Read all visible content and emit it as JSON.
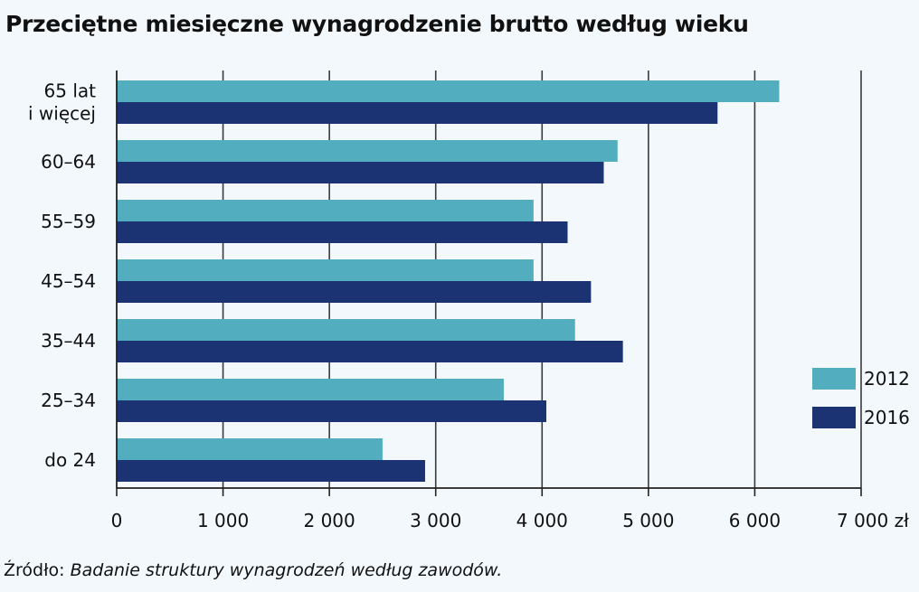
{
  "chart_data": {
    "type": "bar",
    "orientation": "horizontal",
    "title": "Przeciętne miesięczne wynagrodzenie brutto według wieku",
    "categories": [
      [
        "65 lat",
        "i więcej"
      ],
      [
        "60–64"
      ],
      [
        "55–59"
      ],
      [
        "45–54"
      ],
      [
        "35–44"
      ],
      [
        "25–34"
      ],
      [
        "do 24"
      ]
    ],
    "series": [
      {
        "name": "2012",
        "color": "#52aebf",
        "values": [
          6230,
          4710,
          3920,
          3920,
          4310,
          3640,
          2500
        ]
      },
      {
        "name": "2016",
        "color": "#1b3373",
        "values": [
          5650,
          4580,
          4240,
          4460,
          4760,
          4040,
          2900
        ]
      }
    ],
    "x_ticks": [
      "0",
      "1 000",
      "2 000",
      "3 000",
      "4 000",
      "5 000",
      "6 000",
      "7 000 zł"
    ],
    "xlim": [
      0,
      7000
    ],
    "grid": true,
    "legend_position": "right"
  },
  "source": {
    "label": "Źródło:",
    "work": "Badanie struktury wynagrodzeń według zawodów."
  }
}
